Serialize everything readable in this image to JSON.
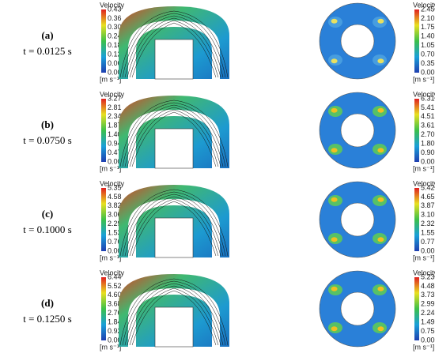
{
  "rows": [
    {
      "label": "(a)",
      "time": "t = 0.0125 s",
      "left_colorbar": {
        "title": "Velocity",
        "ticks": [
          "0.43",
          "0.36",
          "0.30",
          "0.24",
          "0.18",
          "0.12",
          "0.06",
          "0.00"
        ],
        "unit": "[m s⁻¹]"
      },
      "right_colorbar": {
        "title": "Velocity",
        "ticks": [
          "2.45",
          "2.10",
          "1.75",
          "1.40",
          "1.05",
          "0.70",
          "0.35",
          "0.00"
        ],
        "unit": "[m s⁻¹]"
      }
    },
    {
      "label": "(b)",
      "time": "t = 0.0750 s",
      "left_colorbar": {
        "title": "Velocity",
        "ticks": [
          "3.27",
          "2.81",
          "2.34",
          "1.87",
          "1.40",
          "0.94",
          "0.47",
          "0.00"
        ],
        "unit": "[m s⁻¹]"
      },
      "right_colorbar": {
        "title": "Velocity",
        "ticks": [
          "6.31",
          "5.41",
          "4.51",
          "3.61",
          "2.70",
          "1.80",
          "0.90",
          "0.00"
        ],
        "unit": "[m s⁻¹]"
      }
    },
    {
      "label": "(c)",
      "time": "t = 0.1000 s",
      "left_colorbar": {
        "title": "Velocity",
        "ticks": [
          "5.35",
          "4.58",
          "3.82",
          "3.06",
          "2.29",
          "1.53",
          "0.76",
          "0.00"
        ],
        "unit": "[m s⁻¹]"
      },
      "right_colorbar": {
        "title": "Velocity",
        "ticks": [
          "5.42",
          "4.65",
          "3.87",
          "3.10",
          "2.32",
          "1.55",
          "0.77",
          "0.00"
        ],
        "unit": "[m s⁻¹]"
      }
    },
    {
      "label": "(d)",
      "time": "t = 0.1250 s",
      "left_colorbar": {
        "title": "Velocity",
        "ticks": [
          "6.44",
          "5.52",
          "4.60",
          "3.68",
          "2.76",
          "1.84",
          "0.92",
          "0.00"
        ],
        "unit": "[m s⁻¹]"
      },
      "right_colorbar": {
        "title": "Velocity",
        "ticks": [
          "5.23",
          "4.48",
          "3.73",
          "2.99",
          "2.24",
          "1.49",
          "0.75",
          "0.00"
        ],
        "unit": "[m s⁻¹]"
      }
    }
  ]
}
